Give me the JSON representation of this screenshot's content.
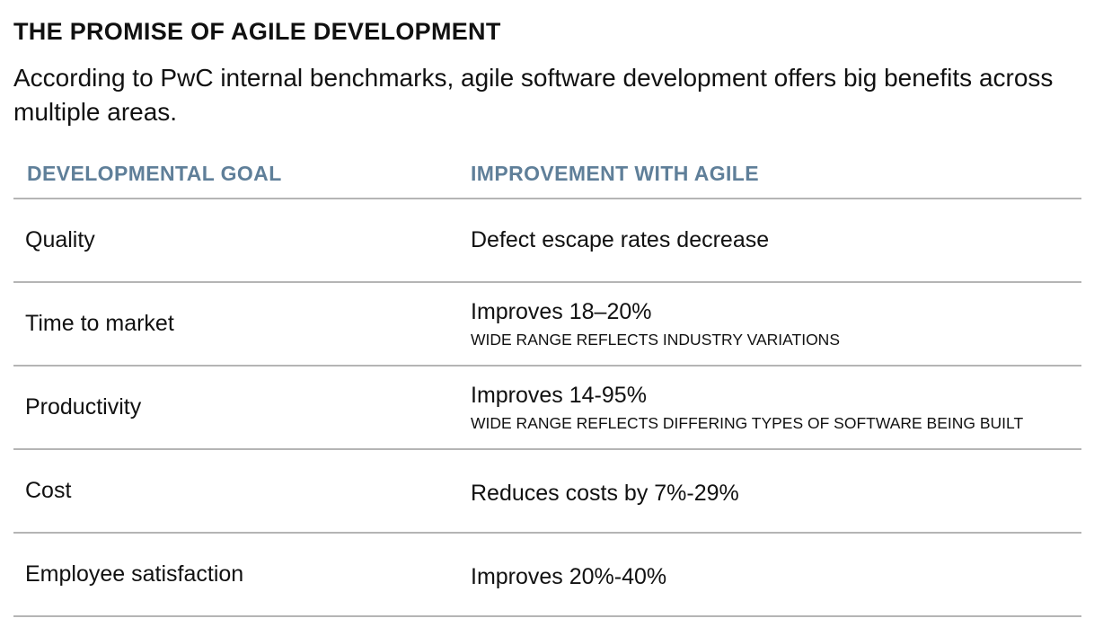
{
  "title": "THE PROMISE OF AGILE DEVELOPMENT",
  "subtitle": "According to PwC internal benchmarks, agile software development offers big benefits across multiple areas.",
  "table": {
    "headers": [
      "DEVELOPMENTAL GOAL",
      "IMPROVEMENT WITH AGILE"
    ],
    "header_color": "#5f7f99",
    "rows": [
      {
        "goal": "Quality",
        "improvement": "Defect escape rates decrease",
        "note": ""
      },
      {
        "goal": "Time to market",
        "improvement": "Improves 18–20%",
        "note": "WIDE RANGE REFLECTS INDUSTRY VARIATIONS"
      },
      {
        "goal": "Productivity",
        "improvement": "Improves 14-95%",
        "note": "WIDE RANGE REFLECTS DIFFERING TYPES OF SOFTWARE BEING BUILT"
      },
      {
        "goal": "Cost",
        "improvement": "Reduces costs by 7%-29%",
        "note": ""
      },
      {
        "goal": "Employee satisfaction",
        "improvement": "Improves 20%-40%",
        "note": ""
      }
    ]
  }
}
